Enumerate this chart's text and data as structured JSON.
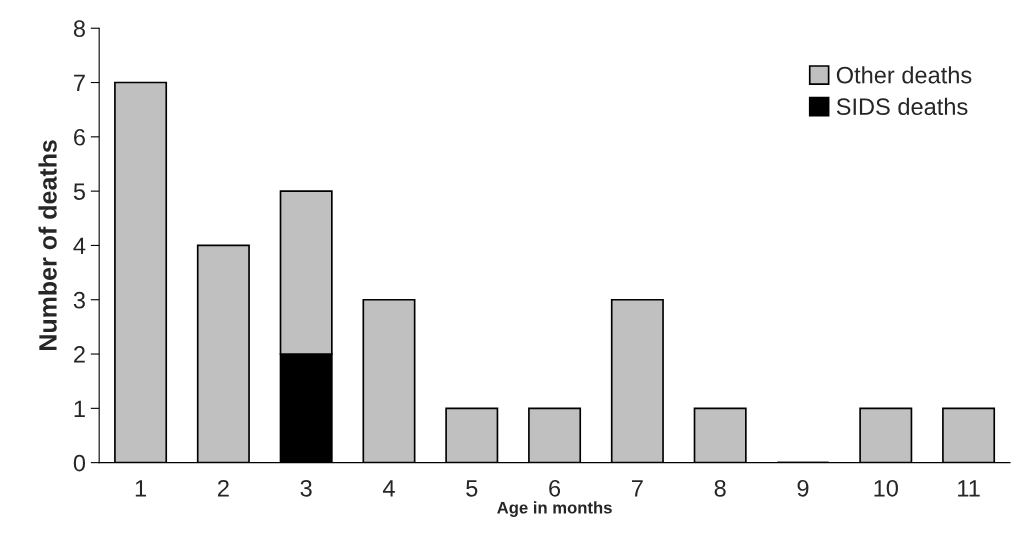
{
  "chart_data": {
    "type": "bar",
    "stacked": true,
    "xlabel": "Age in months",
    "ylabel": "Number of deaths",
    "categories": [
      "1",
      "2",
      "3",
      "4",
      "5",
      "6",
      "7",
      "8",
      "9",
      "10",
      "11"
    ],
    "series": [
      {
        "name": "SIDS deaths",
        "color": "#000000",
        "values": [
          0,
          0,
          2,
          0,
          0,
          0,
          0,
          0,
          0,
          0,
          0
        ]
      },
      {
        "name": "Other deaths",
        "color": "#c0c0c0",
        "values": [
          7,
          4,
          3,
          3,
          1,
          1,
          3,
          1,
          0,
          1,
          1
        ]
      }
    ],
    "ylim": [
      0,
      8
    ],
    "yticks": [
      0,
      1,
      2,
      3,
      4,
      5,
      6,
      7,
      8
    ],
    "grid": false,
    "legend": "top right"
  }
}
